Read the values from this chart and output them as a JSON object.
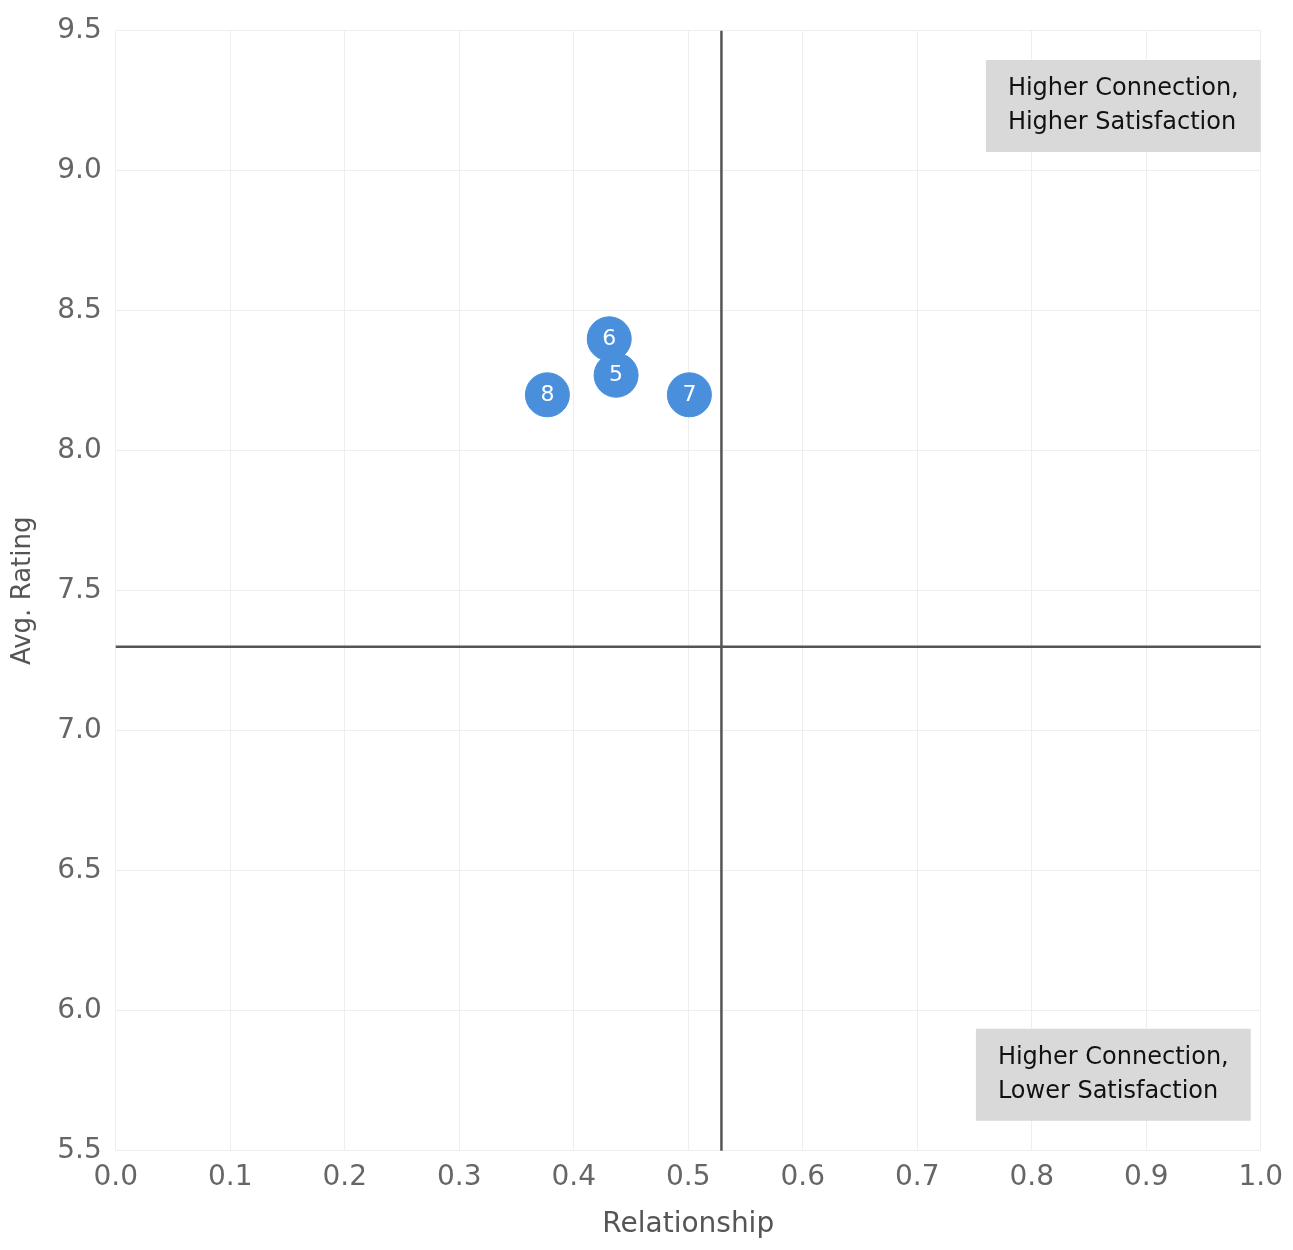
{
  "chart_data": {
    "type": "scatter",
    "xlabel": "Relationship",
    "ylabel": "Avg. Rating",
    "series": [
      {
        "name": "8",
        "color": "#4a8fdc",
        "x": [
          0.377
        ],
        "values": [
          8.2
        ]
      },
      {
        "name": "6",
        "color": "#4a8fdc",
        "x": [
          0.431
        ],
        "values": [
          8.4
        ]
      },
      {
        "name": "5",
        "color": "#4a8fdc",
        "x": [
          0.437
        ],
        "values": [
          8.27
        ]
      },
      {
        "name": "7",
        "color": "#4a8fdc",
        "x": [
          0.501
        ],
        "values": [
          8.2
        ]
      }
    ],
    "xlim": [
      0,
      1
    ],
    "ylim": [
      5.5,
      9.5
    ],
    "xticks": [
      {
        "value": 0,
        "label": "0.0"
      },
      0.1,
      0.2,
      0.3,
      0.4,
      0.5,
      0.6,
      0.7,
      0.8,
      0.9,
      {
        "value": 1,
        "label": "1.0"
      }
    ],
    "yticks": [
      5.5,
      {
        "value": 6,
        "label": "6.0"
      },
      6.5,
      {
        "value": 7,
        "label": "7.0"
      },
      7.5,
      {
        "value": 8,
        "label": "8.0"
      },
      8.5,
      {
        "value": 9,
        "label": "9.0"
      },
      9.5
    ],
    "ref_lines": [
      {
        "axis": "x",
        "value": 0.529,
        "color": "#555555"
      },
      {
        "axis": "y",
        "value": 7.3,
        "color": "#555555"
      }
    ],
    "annotations": [
      "Higher Connection,\nHigher Satisfaction",
      "Higher Connection,\nLower Satisfaction"
    ],
    "grid": true,
    "legend": false,
    "marker": "circle"
  }
}
